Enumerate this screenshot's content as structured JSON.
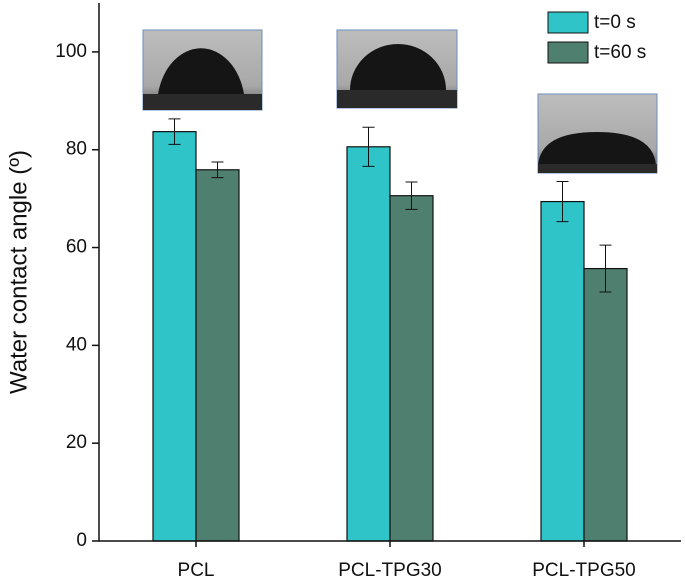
{
  "chart_data": {
    "type": "bar",
    "y_label": "Water contact angle (º)",
    "categories": [
      "PCL",
      "PCL-TPG30",
      "PCL-TPG50"
    ],
    "series": [
      {
        "name": "t=0 s",
        "color": "#2ec4c8",
        "values": [
          83.7,
          80.6,
          69.4
        ],
        "errors": [
          2.6,
          4.0,
          4.1
        ]
      },
      {
        "name": "t=60 s",
        "color": "#4f7f6f",
        "values": [
          75.9,
          70.6,
          55.7
        ],
        "errors": [
          1.6,
          2.8,
          4.8
        ]
      }
    ],
    "ylim": [
      0,
      110
    ],
    "yticks": [
      0,
      20,
      40,
      60,
      80,
      100
    ],
    "legend": "upper right"
  }
}
